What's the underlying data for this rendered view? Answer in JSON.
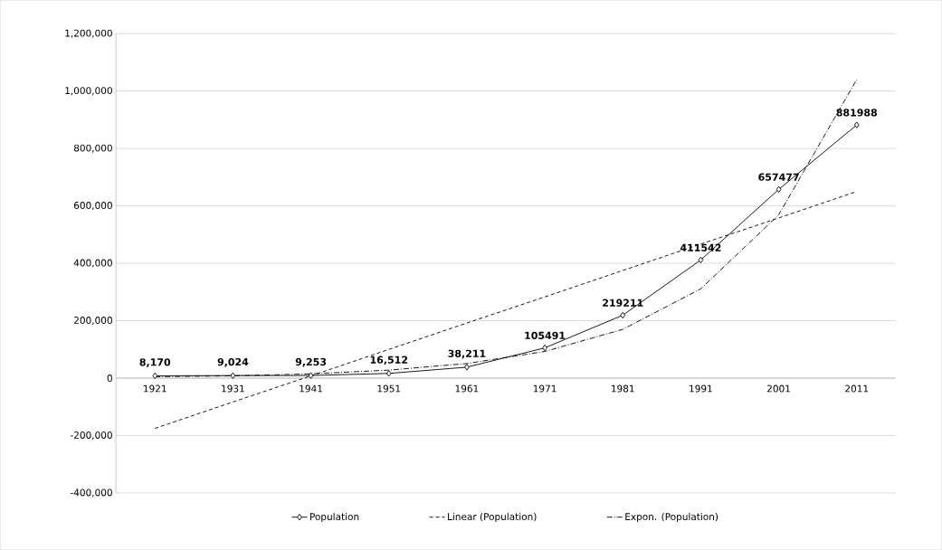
{
  "chart_data": {
    "type": "line",
    "categories": [
      "1921",
      "1931",
      "1941",
      "1951",
      "1961",
      "1971",
      "1981",
      "1991",
      "2001",
      "2011"
    ],
    "series": [
      {
        "name": "Population",
        "color": "#000000",
        "marker": "diamond",
        "line_style": "solid",
        "values": [
          8170,
          9024,
          9253,
          16512,
          38211,
          105491,
          219211,
          411542,
          657477,
          881988
        ],
        "value_labels": [
          "8,170",
          "9,024",
          "9,253",
          "16,512",
          "38,211",
          "105491",
          "219211",
          "411542",
          "657477",
          "881988"
        ]
      },
      {
        "name": "Linear (Population)",
        "color": "#000000",
        "type": "line",
        "marker": "none",
        "line_style": "dashed",
        "values": [
          -175000,
          -83000,
          8000,
          100000,
          192000,
          283000,
          375000,
          467000,
          558000,
          650000
        ]
      },
      {
        "name": "Expon. (Population)",
        "color": "#000000",
        "type": "line",
        "marker": "none",
        "line_style": "dashdot",
        "values": [
          5000,
          8000,
          15000,
          28000,
          51000,
          93000,
          170000,
          311000,
          569000,
          1040000
        ]
      }
    ],
    "ylim": [
      -400000,
      1200000
    ],
    "yticks": [
      {
        "value": -400000,
        "label": "-400,000"
      },
      {
        "value": -200000,
        "label": "-200,000"
      },
      0,
      {
        "value": 200000,
        "label": "200,000"
      },
      {
        "value": 400000,
        "label": "400,000"
      },
      {
        "value": 600000,
        "label": "600,000"
      },
      {
        "value": 800000,
        "label": "800,000"
      },
      {
        "value": 1000000,
        "label": "1,000,000"
      },
      {
        "value": 1200000,
        "label": "1,200,000"
      }
    ],
    "grid": "y",
    "legend": "bottom"
  }
}
